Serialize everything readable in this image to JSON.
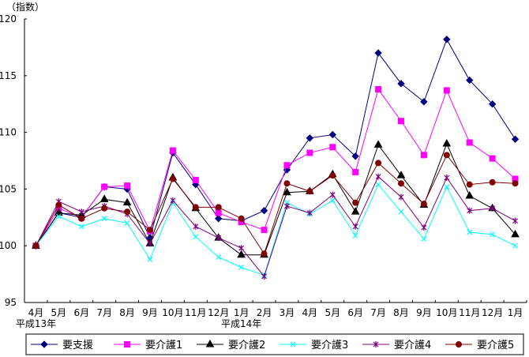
{
  "chart_data": {
    "type": "line",
    "title": "",
    "ylabel": "（指数）",
    "xlabel": "",
    "ylim": [
      95,
      120
    ],
    "yticks": [
      95,
      100,
      105,
      110,
      115,
      120
    ],
    "grid": false,
    "legend_position": "bottom",
    "categories": [
      "4月",
      "5月",
      "6月",
      "7月",
      "8月",
      "9月",
      "10月",
      "11月",
      "12月",
      "1月",
      "2月",
      "3月",
      "4月",
      "5月",
      "6月",
      "7月",
      "8月",
      "9月",
      "10月",
      "11月",
      "12月",
      "1月"
    ],
    "year_labels": [
      {
        "index": 0,
        "label": "平成13年"
      },
      {
        "index": 9,
        "label": "平成14年"
      }
    ],
    "series": [
      {
        "name": "要支援",
        "color": "#000080",
        "marker": "diamond",
        "values": [
          100,
          102.9,
          102.5,
          105.2,
          105.0,
          100.7,
          108.2,
          105.4,
          102.4,
          102.2,
          103.1,
          106.7,
          109.5,
          109.8,
          107.9,
          117.0,
          114.3,
          112.7,
          118.2,
          114.6,
          112.5,
          109.4
        ]
      },
      {
        "name": "要介護1",
        "color": "#FF00FF",
        "marker": "square",
        "values": [
          100,
          103.3,
          102.5,
          105.2,
          105.3,
          101.3,
          108.4,
          105.8,
          102.9,
          102.1,
          101.4,
          107.1,
          108.2,
          108.7,
          106.5,
          113.8,
          111.0,
          108.0,
          113.7,
          109.1,
          107.7,
          105.9
        ]
      },
      {
        "name": "要介護2",
        "color": "#000000",
        "marker": "triangle",
        "values": [
          100,
          102.9,
          102.7,
          104.1,
          103.8,
          100.2,
          106.0,
          103.3,
          100.7,
          99.2,
          99.2,
          104.7,
          104.8,
          106.3,
          103.0,
          108.9,
          106.2,
          103.6,
          109.0,
          104.4,
          103.3,
          101.0
        ]
      },
      {
        "name": "要介護3",
        "color": "#00FFFF",
        "marker": "x",
        "values": [
          100,
          102.6,
          101.7,
          102.4,
          102.0,
          98.8,
          103.8,
          100.8,
          99.0,
          98.1,
          97.4,
          103.8,
          102.8,
          104.0,
          100.9,
          105.4,
          103.0,
          100.6,
          105.2,
          101.2,
          101.0,
          100.0
        ]
      },
      {
        "name": "要介護4",
        "color": "#800080",
        "marker": "star",
        "values": [
          100,
          103.9,
          103.0,
          103.5,
          102.8,
          100.2,
          104.0,
          101.7,
          100.7,
          99.8,
          97.3,
          103.5,
          102.9,
          104.5,
          101.7,
          106.1,
          104.3,
          101.6,
          106.0,
          103.1,
          103.3,
          102.2
        ]
      },
      {
        "name": "要介護5",
        "color": "#800000",
        "marker": "circle",
        "values": [
          100,
          103.6,
          102.4,
          103.3,
          103.0,
          101.4,
          105.9,
          103.4,
          103.4,
          102.4,
          99.3,
          105.5,
          104.8,
          106.2,
          103.8,
          107.3,
          105.5,
          103.7,
          108.0,
          105.4,
          105.6,
          105.5
        ]
      }
    ]
  }
}
